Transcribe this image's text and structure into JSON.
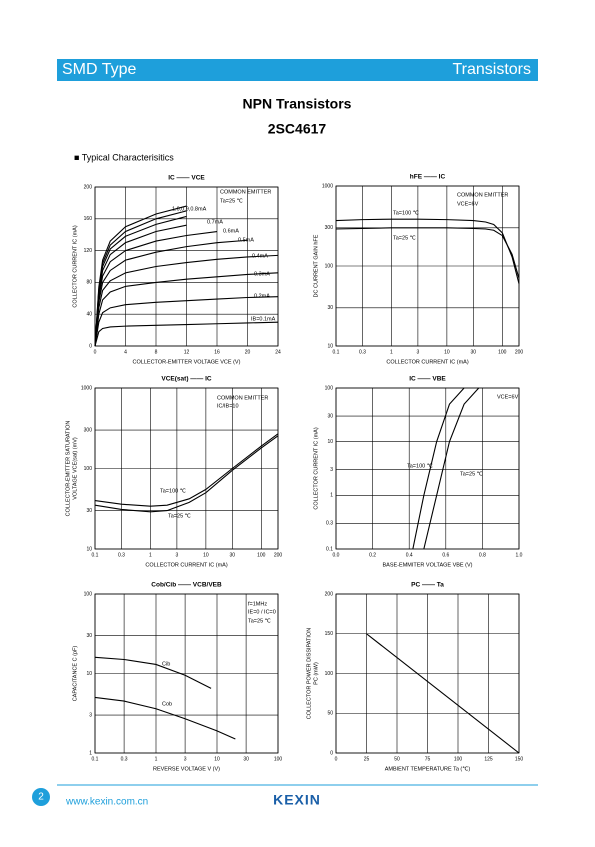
{
  "header": {
    "left": "SMD Type",
    "right": "Transistors"
  },
  "title": "NPN  Transistors",
  "part": "2SC4617",
  "section": "■ Typical  Characterisitics",
  "footer": {
    "page": "2",
    "url": "www.kexin.com.cn",
    "brand": "KEXIN"
  },
  "chart_data": [
    {
      "type": "line",
      "title": "IC —— VCE",
      "x_label": "COLLECTOR-EMITTER VOLTAGE  VCE  (V)",
      "y_label": [
        "COLLECTOR CURRENT  IC  (mA)"
      ],
      "annotations": [
        "COMMON EMITTER",
        "Ta=25 ℃",
        "1.0,0.9,0.8mA"
      ],
      "xlim": [
        0,
        24
      ],
      "ylim": [
        0,
        200
      ],
      "xticks": [
        0,
        4,
        8,
        12,
        16,
        20,
        24
      ],
      "yticks": [
        0,
        40,
        80,
        120,
        160,
        200
      ],
      "grid": true,
      "x": [
        0,
        0.5,
        1,
        2,
        4,
        8,
        12,
        16,
        20,
        24
      ],
      "series": [
        {
          "name": "IB=0.1mA",
          "color": "#000000",
          "values": [
            0,
            18,
            22,
            24,
            25,
            26,
            27,
            28,
            29,
            30
          ]
        },
        {
          "name": "0.2mA",
          "color": "#000000",
          "values": [
            0,
            30,
            42,
            48,
            52,
            55,
            57,
            59,
            61,
            62
          ]
        },
        {
          "name": "0.3mA",
          "color": "#000000",
          "values": [
            0,
            40,
            58,
            68,
            75,
            80,
            84,
            87,
            90,
            92
          ]
        },
        {
          "name": "0.4mA",
          "color": "#000000",
          "values": [
            0,
            48,
            70,
            82,
            92,
            100,
            105,
            109,
            112,
            114
          ]
        },
        {
          "name": "0.5mA",
          "color": "#000000",
          "values": [
            0,
            55,
            80,
            95,
            108,
            118,
            125,
            130,
            133,
            null
          ]
        },
        {
          "name": "0.6mA",
          "color": "#000000",
          "values": [
            0,
            60,
            88,
            106,
            120,
            132,
            139,
            144,
            null,
            null
          ]
        },
        {
          "name": "0.7mA",
          "color": "#000000",
          "values": [
            0,
            64,
            95,
            115,
            130,
            144,
            152,
            null,
            null,
            null
          ]
        },
        {
          "color": "#000000",
          "values": [
            0,
            68,
            100,
            122,
            138,
            153,
            163,
            null,
            null,
            null
          ]
        },
        {
          "color": "#000000",
          "values": [
            0,
            71,
            104,
            127,
            144,
            160,
            170,
            null,
            null,
            null
          ]
        },
        {
          "color": "#000000",
          "values": [
            0,
            74,
            108,
            132,
            150,
            166,
            176,
            null,
            null,
            null
          ]
        }
      ]
    },
    {
      "type": "line",
      "title": "hFE —— IC",
      "x_label": "COLLECTOR CURRENT  IC  (mA)",
      "y_label": [
        "DC CURRENT GAIN  hFE"
      ],
      "annotations": [
        "COMMON EMITTER",
        "VCE=6V"
      ],
      "xscale": "log",
      "yscale": "log",
      "xlim": [
        0.1,
        200
      ],
      "ylim": [
        10,
        1000
      ],
      "xticks": [
        0.1,
        0.3,
        1,
        3,
        10,
        30,
        100,
        200
      ],
      "yticks": [
        10,
        30,
        100,
        300,
        1000
      ],
      "grid": true,
      "x": [
        0.1,
        0.3,
        1,
        3,
        10,
        30,
        50,
        70,
        100,
        150,
        200
      ],
      "series": [
        {
          "name": "Ta=100 ℃",
          "color": "#000000",
          "values": [
            370,
            380,
            385,
            385,
            380,
            370,
            355,
            330,
            260,
            130,
            60
          ]
        },
        {
          "name": "Ta=25 ℃",
          "color": "#000000",
          "values": [
            290,
            295,
            300,
            300,
            300,
            295,
            290,
            280,
            240,
            140,
            70
          ]
        }
      ]
    },
    {
      "type": "line",
      "title": "VCE(sat) —— IC",
      "x_label": "COLLECTOR CURRENT  IC  (mA)",
      "y_label": [
        "COLLECTOR-EMITTER SATURATION",
        "VOLTAGE  VCE(sat)  (mV)"
      ],
      "annotations": [
        "COMMON EMITTER",
        "IC/IB=10"
      ],
      "xscale": "log",
      "yscale": "log",
      "xlim": [
        0.1,
        200
      ],
      "ylim": [
        10,
        1000
      ],
      "xticks": [
        0.1,
        0.3,
        1,
        3,
        10,
        30,
        100,
        200
      ],
      "yticks": [
        10,
        30,
        100,
        300,
        1000
      ],
      "grid": true,
      "x": [
        0.1,
        0.3,
        1,
        2,
        5,
        10,
        30,
        100,
        200
      ],
      "series": [
        {
          "name": "Ta=100 ℃",
          "color": "#000000",
          "values": [
            40,
            36,
            34,
            35,
            42,
            55,
            100,
            190,
            270
          ]
        },
        {
          "name": "Ta=25 ℃",
          "color": "#000000",
          "values": [
            35,
            31,
            29,
            30,
            38,
            50,
            95,
            180,
            255
          ]
        }
      ]
    },
    {
      "type": "line",
      "title": "IC —— VBE",
      "x_label": "BASE-EMMITER VOLTAGE  VBE  (V)",
      "y_label": [
        "COLLECTOR CURRENT  IC  (mA)"
      ],
      "annotations": [
        "VCE=6V"
      ],
      "yscale": "log",
      "xlim": [
        0,
        1
      ],
      "ylim": [
        0.1,
        100
      ],
      "xticks": [
        {
          "value": 0,
          "label": "0.0"
        },
        0.2,
        0.4,
        0.6,
        0.8,
        {
          "value": 1,
          "label": "1.0"
        }
      ],
      "yticks": [
        0.1,
        0.3,
        1,
        3,
        10,
        30,
        100
      ],
      "grid": true,
      "series": [
        {
          "name": "Ta=100 ℃",
          "color": "#000000",
          "x": [
            0.42,
            0.48,
            0.55,
            0.62,
            0.7
          ],
          "values": [
            0.1,
            1,
            10,
            50,
            100
          ]
        },
        {
          "name": "Ta=25 ℃",
          "color": "#000000",
          "x": [
            0.48,
            0.55,
            0.62,
            0.7,
            0.78
          ],
          "values": [
            0.1,
            1,
            10,
            50,
            100
          ]
        }
      ]
    },
    {
      "type": "line",
      "title": "Cob/Cib —— VCB/VEB",
      "x_label": "REVERSE  VOLTAGE  V  (V)",
      "y_label": [
        "CAPACITANCE  C  (pF)"
      ],
      "annotations": [
        "f=1MHz",
        "IE=0 / IC=0",
        "Ta=25 ℃"
      ],
      "xscale": "log",
      "yscale": "log",
      "xlim": [
        0.1,
        100
      ],
      "ylim": [
        1,
        100
      ],
      "xticks": [
        0.1,
        0.3,
        1,
        3,
        10,
        30,
        100
      ],
      "yticks": [
        1,
        3,
        10,
        30,
        100
      ],
      "grid": true,
      "series": [
        {
          "name": "Cib",
          "color": "#000000",
          "x": [
            0.1,
            0.3,
            1,
            3,
            8
          ],
          "values": [
            16,
            15,
            13,
            9.5,
            6.5
          ]
        },
        {
          "name": "Cob",
          "color": "#000000",
          "x": [
            0.1,
            0.3,
            1,
            3,
            10,
            20
          ],
          "values": [
            5,
            4.5,
            3.6,
            2.7,
            1.9,
            1.5
          ]
        }
      ]
    },
    {
      "type": "line",
      "title": "PC —— Ta",
      "x_label": "AMBIENT TEMPERATURE  Ta  (℃)",
      "y_label": [
        "COLLECTOR POWER DISSIPATION",
        "PC  (mW)"
      ],
      "xlim": [
        0,
        150
      ],
      "ylim": [
        0,
        200
      ],
      "xticks": [
        0,
        25,
        50,
        75,
        100,
        125,
        150
      ],
      "yticks": [
        0,
        50,
        100,
        150,
        200
      ],
      "grid": true,
      "series": [
        {
          "color": "#000000",
          "x": [
            25,
            150
          ],
          "values": [
            150,
            0
          ]
        }
      ]
    }
  ]
}
